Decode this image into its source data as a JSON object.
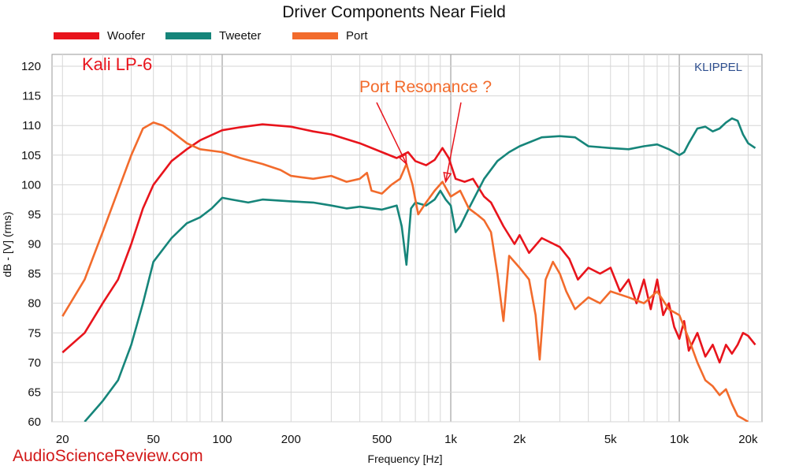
{
  "chart_data": {
    "type": "line",
    "title": "Driver Components Near Field",
    "xlabel": "Frequency [Hz]",
    "ylabel": "dB - [V] (rms)",
    "x_scale": "log",
    "xlim": [
      18,
      23000
    ],
    "ylim": [
      60,
      122
    ],
    "x_ticks": [
      {
        "value": 20,
        "label": "20"
      },
      {
        "value": 50,
        "label": "50"
      },
      {
        "value": 100,
        "label": "100"
      },
      {
        "value": 200,
        "label": "200"
      },
      {
        "value": 500,
        "label": "500"
      },
      {
        "value": 1000,
        "label": "1k"
      },
      {
        "value": 2000,
        "label": "2k"
      },
      {
        "value": 5000,
        "label": "5k"
      },
      {
        "value": 10000,
        "label": "10k"
      },
      {
        "value": 20000,
        "label": "20k"
      }
    ],
    "y_ticks": [
      60,
      65,
      70,
      75,
      80,
      85,
      90,
      95,
      100,
      105,
      110,
      115,
      120
    ],
    "grid": true,
    "legend_position": "top-left",
    "series": [
      {
        "name": "Woofer",
        "color": "#e8141c",
        "points": [
          [
            20,
            71.7
          ],
          [
            25,
            75
          ],
          [
            30,
            80
          ],
          [
            35,
            84
          ],
          [
            40,
            90
          ],
          [
            45,
            96
          ],
          [
            50,
            100
          ],
          [
            60,
            104
          ],
          [
            70,
            106
          ],
          [
            80,
            107.5
          ],
          [
            100,
            109.2
          ],
          [
            120,
            109.7
          ],
          [
            150,
            110.2
          ],
          [
            200,
            109.8
          ],
          [
            250,
            109
          ],
          [
            300,
            108.5
          ],
          [
            400,
            107
          ],
          [
            500,
            105.5
          ],
          [
            580,
            104.5
          ],
          [
            650,
            105.5
          ],
          [
            700,
            104
          ],
          [
            780,
            103.3
          ],
          [
            850,
            104.2
          ],
          [
            920,
            106.2
          ],
          [
            980,
            104.5
          ],
          [
            1050,
            101
          ],
          [
            1150,
            100.5
          ],
          [
            1250,
            101
          ],
          [
            1400,
            98
          ],
          [
            1500,
            97
          ],
          [
            1700,
            93
          ],
          [
            1900,
            90
          ],
          [
            2000,
            91.5
          ],
          [
            2200,
            88.5
          ],
          [
            2500,
            91
          ],
          [
            3000,
            89.5
          ],
          [
            3300,
            87.5
          ],
          [
            3600,
            84
          ],
          [
            4000,
            86
          ],
          [
            4500,
            85
          ],
          [
            5000,
            86
          ],
          [
            5500,
            82
          ],
          [
            6000,
            84
          ],
          [
            6500,
            80
          ],
          [
            7000,
            84
          ],
          [
            7500,
            79
          ],
          [
            8000,
            84
          ],
          [
            8500,
            78
          ],
          [
            9000,
            80
          ],
          [
            9500,
            76
          ],
          [
            10000,
            74
          ],
          [
            10500,
            77
          ],
          [
            11000,
            72
          ],
          [
            12000,
            75
          ],
          [
            13000,
            71
          ],
          [
            14000,
            73
          ],
          [
            15000,
            70
          ],
          [
            16000,
            73
          ],
          [
            17000,
            71.5
          ],
          [
            18000,
            73
          ],
          [
            19000,
            75
          ],
          [
            20000,
            74.5
          ],
          [
            21500,
            73
          ]
        ]
      },
      {
        "name": "Tweeter",
        "color": "#16857a",
        "points": [
          [
            25,
            60
          ],
          [
            30,
            63.5
          ],
          [
            35,
            67
          ],
          [
            40,
            73
          ],
          [
            45,
            80
          ],
          [
            50,
            87
          ],
          [
            60,
            91
          ],
          [
            70,
            93.5
          ],
          [
            80,
            94.5
          ],
          [
            90,
            96
          ],
          [
            100,
            97.8
          ],
          [
            110,
            97.5
          ],
          [
            130,
            97
          ],
          [
            150,
            97.5
          ],
          [
            200,
            97.2
          ],
          [
            250,
            97
          ],
          [
            300,
            96.5
          ],
          [
            350,
            96
          ],
          [
            400,
            96.3
          ],
          [
            500,
            95.8
          ],
          [
            580,
            96.5
          ],
          [
            610,
            93
          ],
          [
            640,
            86.5
          ],
          [
            670,
            96
          ],
          [
            700,
            97
          ],
          [
            780,
            96.5
          ],
          [
            850,
            97.5
          ],
          [
            900,
            99
          ],
          [
            950,
            97.5
          ],
          [
            1000,
            96.5
          ],
          [
            1050,
            92
          ],
          [
            1100,
            93
          ],
          [
            1200,
            96
          ],
          [
            1400,
            101
          ],
          [
            1600,
            104
          ],
          [
            1800,
            105.5
          ],
          [
            2000,
            106.5
          ],
          [
            2500,
            108
          ],
          [
            3000,
            108.2
          ],
          [
            3500,
            108
          ],
          [
            4000,
            106.5
          ],
          [
            5000,
            106.2
          ],
          [
            6000,
            106
          ],
          [
            7000,
            106.5
          ],
          [
            8000,
            106.8
          ],
          [
            9000,
            106
          ],
          [
            10000,
            105
          ],
          [
            10500,
            105.5
          ],
          [
            11000,
            107
          ],
          [
            12000,
            109.5
          ],
          [
            13000,
            109.8
          ],
          [
            14000,
            109
          ],
          [
            15000,
            109.5
          ],
          [
            16000,
            110.5
          ],
          [
            17000,
            111.2
          ],
          [
            18000,
            110.8
          ],
          [
            19000,
            108.5
          ],
          [
            20000,
            107
          ],
          [
            21500,
            106.2
          ]
        ]
      },
      {
        "name": "Port",
        "color": "#f26b2c",
        "points": [
          [
            20,
            77.8
          ],
          [
            25,
            84
          ],
          [
            30,
            92
          ],
          [
            35,
            99
          ],
          [
            40,
            105
          ],
          [
            45,
            109.5
          ],
          [
            50,
            110.5
          ],
          [
            55,
            110
          ],
          [
            60,
            109
          ],
          [
            70,
            107
          ],
          [
            80,
            106
          ],
          [
            100,
            105.5
          ],
          [
            120,
            104.5
          ],
          [
            150,
            103.5
          ],
          [
            180,
            102.5
          ],
          [
            200,
            101.5
          ],
          [
            250,
            101
          ],
          [
            300,
            101.5
          ],
          [
            350,
            100.5
          ],
          [
            400,
            101
          ],
          [
            430,
            102
          ],
          [
            450,
            99
          ],
          [
            500,
            98.5
          ],
          [
            550,
            100
          ],
          [
            600,
            101
          ],
          [
            640,
            103.5
          ],
          [
            680,
            100
          ],
          [
            720,
            95
          ],
          [
            780,
            97
          ],
          [
            850,
            99
          ],
          [
            920,
            100.5
          ],
          [
            1000,
            98
          ],
          [
            1100,
            99
          ],
          [
            1200,
            96
          ],
          [
            1300,
            95
          ],
          [
            1400,
            94
          ],
          [
            1500,
            92
          ],
          [
            1600,
            85
          ],
          [
            1700,
            77
          ],
          [
            1800,
            88
          ],
          [
            2000,
            86
          ],
          [
            2200,
            84
          ],
          [
            2350,
            78
          ],
          [
            2450,
            70.5
          ],
          [
            2600,
            84
          ],
          [
            2800,
            87
          ],
          [
            3000,
            85
          ],
          [
            3200,
            82
          ],
          [
            3500,
            79
          ],
          [
            4000,
            81
          ],
          [
            4500,
            80
          ],
          [
            5000,
            82
          ],
          [
            6000,
            81
          ],
          [
            7000,
            80
          ],
          [
            8000,
            82
          ],
          [
            9000,
            79
          ],
          [
            10000,
            78
          ],
          [
            11000,
            74
          ],
          [
            12000,
            70
          ],
          [
            13000,
            67
          ],
          [
            14000,
            66
          ],
          [
            15000,
            64.5
          ],
          [
            16000,
            65.5
          ],
          [
            17000,
            63
          ],
          [
            18000,
            61
          ],
          [
            19000,
            60.5
          ],
          [
            20000,
            60
          ]
        ]
      }
    ],
    "annotations": [
      {
        "text": "Port Resonance ?",
        "color": "#f26b2c",
        "arrows_to": [
          [
            640,
            103.5
          ],
          [
            950,
            100.5
          ]
        ]
      }
    ]
  },
  "brand": {
    "text": "Kali LP-6",
    "color": "#e8141c"
  },
  "analyzer": {
    "text": "KLIPPEL",
    "color": "#2e4f8f"
  },
  "watermark": {
    "text": "AudioScienceReview.com",
    "color": "#d21a1a"
  }
}
